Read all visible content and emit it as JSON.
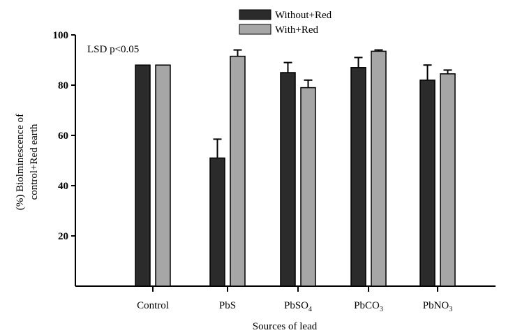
{
  "chart_data": {
    "type": "bar",
    "categories": [
      {
        "base": "Control",
        "sub": ""
      },
      {
        "base": "PbS",
        "sub": ""
      },
      {
        "base": "PbSO",
        "sub": "4"
      },
      {
        "base": "PbCO",
        "sub": "3"
      },
      {
        "base": "PbNO",
        "sub": "3"
      }
    ],
    "series": [
      {
        "name": "Without+Red",
        "color": "#2b2b2b",
        "values": [
          88,
          51,
          85,
          87,
          82
        ],
        "errors": [
          0,
          7.5,
          4,
          4,
          6
        ]
      },
      {
        "name": "With+Red",
        "color": "#a6a6a6",
        "values": [
          88,
          91.5,
          79,
          93.5,
          84.5
        ],
        "errors": [
          0,
          2.5,
          3,
          0.5,
          1.5
        ]
      }
    ],
    "ylim": [
      0,
      100
    ],
    "yticks": [
      20,
      40,
      60,
      80,
      100
    ],
    "xlabel": "Sources of lead",
    "ylabel_lines": [
      "(%) Biolminescence of",
      "control+Red earth"
    ],
    "annotation": "LSD p<0.05",
    "legend_position": "top",
    "grid": false
  }
}
